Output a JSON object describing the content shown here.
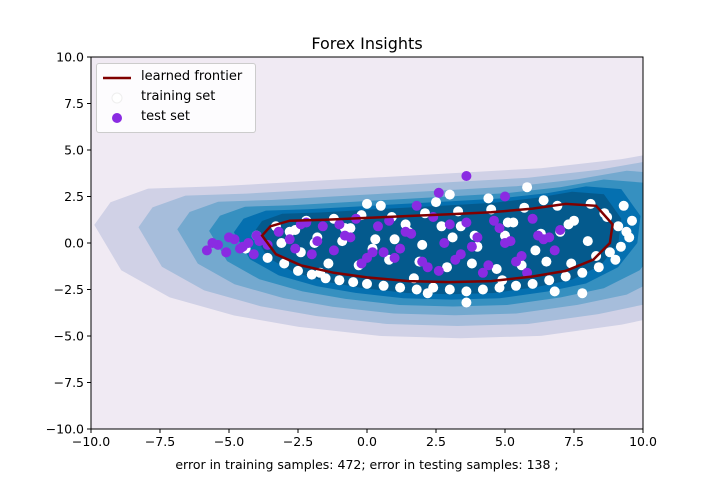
{
  "chart_data": {
    "type": "contour",
    "title": "Forex Insights",
    "xlabel": "error in training samples: 472; error in testing samples: 138 ;",
    "ylabel": "",
    "xlim": [
      -10,
      10
    ],
    "ylim": [
      -10,
      10
    ],
    "xticks": [
      -10,
      -7.5,
      -5,
      -2.5,
      0,
      2.5,
      5,
      7.5,
      10
    ],
    "xtick_labels": [
      "−10.0",
      "−7.5",
      "−5.0",
      "−2.5",
      "0.0",
      "2.5",
      "5.0",
      "7.5",
      "10.0"
    ],
    "yticks": [
      -10,
      -7.5,
      -5,
      -2.5,
      0,
      2.5,
      5,
      7.5,
      10
    ],
    "ytick_labels": [
      "−10.0",
      "−7.5",
      "−5.0",
      "−2.5",
      "0.0",
      "2.5",
      "5.0",
      "7.5",
      "10.0"
    ],
    "grid": false,
    "legend_position": "upper-left",
    "background_color": "#f0eaf3",
    "contour_colors": [
      "#d0d1e6",
      "#a6bddb",
      "#74a9cf",
      "#3690c0",
      "#0570b0",
      "#045a8d"
    ],
    "frontier": {
      "name": "learned frontier",
      "color": "#800000",
      "x": [
        -3.8,
        -3.5,
        -2.8,
        -1.5,
        0.0,
        1.5,
        3.0,
        4.5,
        6.0,
        7.2,
        8.3,
        8.9,
        8.8,
        8.2,
        7.2,
        6.0,
        4.5,
        3.0,
        1.5,
        0.0,
        -1.2,
        -2.4,
        -3.3,
        -3.8
      ],
      "y": [
        0.4,
        0.9,
        1.2,
        1.25,
        1.35,
        1.45,
        1.55,
        1.65,
        1.85,
        2.1,
        2.0,
        1.0,
        0.0,
        -0.9,
        -1.5,
        -1.8,
        -2.05,
        -2.1,
        -2.05,
        -1.85,
        -1.6,
        -1.2,
        -0.6,
        0.4
      ]
    },
    "series": [
      {
        "name": "training set",
        "color": "#ffffff",
        "x": [
          -4.4,
          -4.0,
          -3.6,
          -3.3,
          -3.0,
          -2.8,
          -2.5,
          -2.2,
          -2.0,
          -1.8,
          -1.5,
          -1.2,
          -1.0,
          -0.8,
          -0.5,
          -0.2,
          0.0,
          0.3,
          0.6,
          0.9,
          1.2,
          1.5,
          1.8,
          2.1,
          2.4,
          2.7,
          3.0,
          3.3,
          3.6,
          3.9,
          4.2,
          4.5,
          4.8,
          5.1,
          5.4,
          5.7,
          6.0,
          6.3,
          6.6,
          6.9,
          7.2,
          7.5,
          7.8,
          8.1,
          8.4,
          8.7,
          9.0,
          9.3,
          9.5,
          -3.1,
          -2.4,
          -1.9,
          -0.9,
          0.2,
          1.0,
          2.0,
          3.1,
          4.0,
          5.0,
          6.1,
          7.0,
          8.0,
          9.2,
          -1.4,
          -0.3,
          0.8,
          1.9,
          2.9,
          3.8,
          4.7,
          5.6,
          6.5,
          7.4,
          8.3,
          9.1,
          -2.6,
          -0.6,
          1.4,
          3.4,
          5.3,
          7.3,
          9.4,
          0.5,
          2.5,
          4.4,
          6.4,
          8.6,
          -1.7,
          1.7,
          4.9,
          8.8,
          2.2,
          6.8,
          3.6,
          7.8,
          5.8,
          9.6,
          0.0,
          3.0
        ],
        "y": [
          -0.3,
          0.4,
          -0.8,
          0.9,
          -1.1,
          0.6,
          -1.5,
          1.2,
          -1.7,
          0.3,
          -1.9,
          1.3,
          -2.0,
          0.8,
          -2.1,
          1.5,
          -2.2,
          0.2,
          -2.3,
          1.4,
          -2.4,
          0.6,
          -2.5,
          1.6,
          -2.4,
          0.9,
          -2.5,
          1.7,
          -2.6,
          0.4,
          -2.5,
          1.8,
          -2.4,
          1.1,
          -2.3,
          1.9,
          -2.2,
          0.5,
          -2.0,
          2.0,
          -1.8,
          1.2,
          -1.6,
          2.1,
          -1.3,
          1.4,
          -0.9,
          2.0,
          0.3,
          0.0,
          -0.5,
          0.0,
          0.1,
          -0.3,
          0.2,
          -0.1,
          0.3,
          -0.2,
          0.4,
          -0.4,
          0.6,
          0.1,
          -0.2,
          -1.1,
          -1.2,
          -0.9,
          -1.0,
          -1.3,
          -1.1,
          -1.4,
          -1.2,
          -1.0,
          -1.1,
          -0.7,
          0.9,
          0.7,
          0.8,
          1.0,
          0.9,
          1.1,
          1.0,
          0.6,
          2.0,
          2.2,
          2.4,
          2.3,
          1.6,
          -1.6,
          -1.9,
          -2.0,
          -0.5,
          -2.7,
          -2.6,
          -3.2,
          -2.7,
          3.0,
          1.2,
          2.1,
          2.6
        ]
      },
      {
        "name": "test set",
        "color": "#8a2be2",
        "x": [
          -5.8,
          -5.4,
          -5.1,
          -4.8,
          -4.6,
          -4.3,
          -4.1,
          -3.9,
          -5.6,
          -5.0,
          -4.5,
          -4.0,
          -3.6,
          -3.2,
          -2.8,
          -2.4,
          -2.0,
          -1.6,
          -1.2,
          -0.8,
          -0.4,
          0.0,
          0.4,
          0.8,
          1.2,
          1.6,
          2.0,
          2.4,
          2.8,
          3.2,
          3.6,
          4.0,
          4.4,
          4.8,
          5.2,
          5.6,
          6.0,
          6.4,
          6.8,
          7.0,
          -2.6,
          -1.8,
          -1.0,
          -0.2,
          0.6,
          1.4,
          2.2,
          3.0,
          3.8,
          4.6,
          5.4,
          6.2,
          -2.2,
          -0.6,
          1.0,
          2.6,
          4.2,
          5.8,
          0.2,
          1.8,
          3.4,
          5.0,
          6.6,
          2.6,
          3.6,
          5.0
        ],
        "y": [
          -0.4,
          -0.1,
          -0.5,
          0.2,
          -0.3,
          0.0,
          -0.6,
          0.1,
          0.0,
          0.3,
          -0.2,
          0.4,
          -0.1,
          0.6,
          0.2,
          1.0,
          -0.6,
          0.9,
          -0.4,
          0.4,
          1.3,
          -0.8,
          0.9,
          1.2,
          -0.3,
          0.5,
          -1.0,
          1.4,
          0.0,
          -0.9,
          1.1,
          0.3,
          -1.2,
          0.8,
          0.1,
          -0.7,
          1.3,
          0.2,
          -0.4,
          0.7,
          -0.3,
          0.1,
          1.0,
          -1.1,
          -0.5,
          0.6,
          -1.3,
          1.0,
          -0.2,
          1.2,
          -1.0,
          0.4,
          1.1,
          0.3,
          -0.8,
          -1.5,
          -1.6,
          -1.6,
          -0.5,
          2.0,
          -0.6,
          0.0,
          0.3,
          2.7,
          3.6,
          2.5
        ]
      }
    ]
  }
}
